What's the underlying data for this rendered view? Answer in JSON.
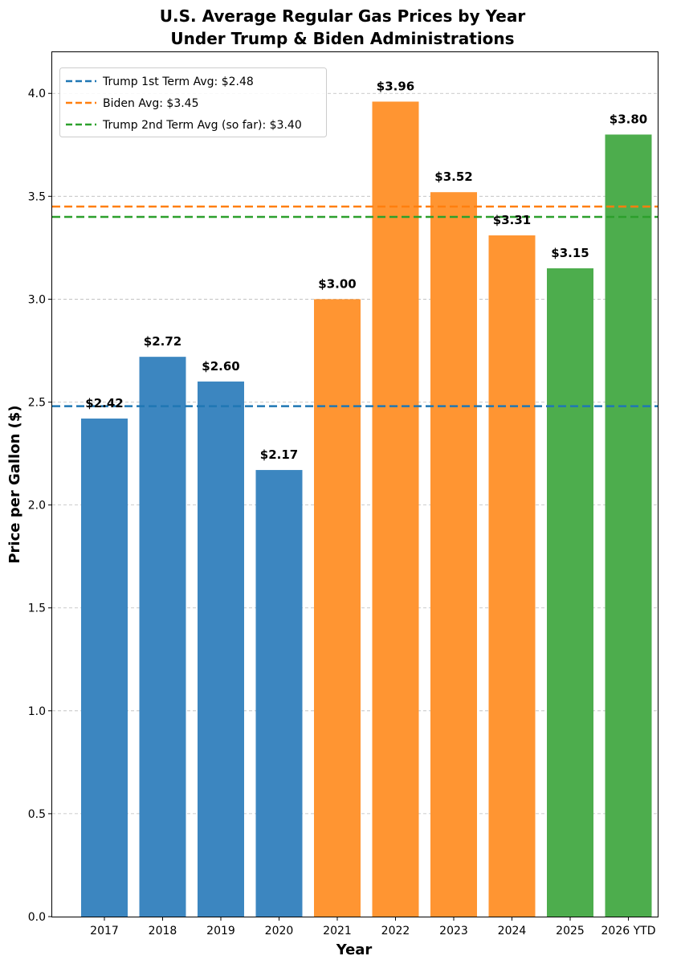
{
  "chart_data": {
    "type": "bar",
    "title_line1": "U.S. Average Regular Gas Prices by Year",
    "title_line2": "Under Trump & Biden Administrations",
    "xlabel": "Year",
    "ylabel": "Price per Gallon ($)",
    "ylim": [
      0,
      4.2
    ],
    "yticks": [
      0.0,
      0.5,
      1.0,
      1.5,
      2.0,
      2.5,
      3.0,
      3.5,
      4.0
    ],
    "ytick_labels": [
      "0.0",
      "0.5",
      "1.0",
      "1.5",
      "2.0",
      "2.5",
      "3.0",
      "3.5",
      "4.0"
    ],
    "grid": "horizontal dashed",
    "legend_position": "top-left",
    "categories": [
      "2017",
      "2018",
      "2019",
      "2020",
      "2021",
      "2022",
      "2023",
      "2024",
      "2025",
      "2026 YTD"
    ],
    "values": [
      2.42,
      2.72,
      2.6,
      2.17,
      3.0,
      3.96,
      3.52,
      3.31,
      3.15,
      3.8
    ],
    "value_labels": [
      "$2.42",
      "$2.72",
      "$2.60",
      "$2.17",
      "$3.00",
      "$3.96",
      "$3.52",
      "$3.31",
      "$3.15",
      "$3.80"
    ],
    "bar_colors": [
      "#3c86c0",
      "#3c86c0",
      "#3c86c0",
      "#3c86c0",
      "#ff9532",
      "#ff9532",
      "#ff9532",
      "#ff9532",
      "#4dad4d",
      "#4dad4d"
    ],
    "reference_lines": [
      {
        "label": "Trump 1st Term Avg: $2.48",
        "value": 2.48,
        "color": "#1f77b4"
      },
      {
        "label": "Biden Avg: $3.45",
        "value": 3.45,
        "color": "#ff7f0e"
      },
      {
        "label": "Trump 2nd Term Avg (so far): $3.40",
        "value": 3.4,
        "color": "#2ca02c"
      }
    ]
  }
}
